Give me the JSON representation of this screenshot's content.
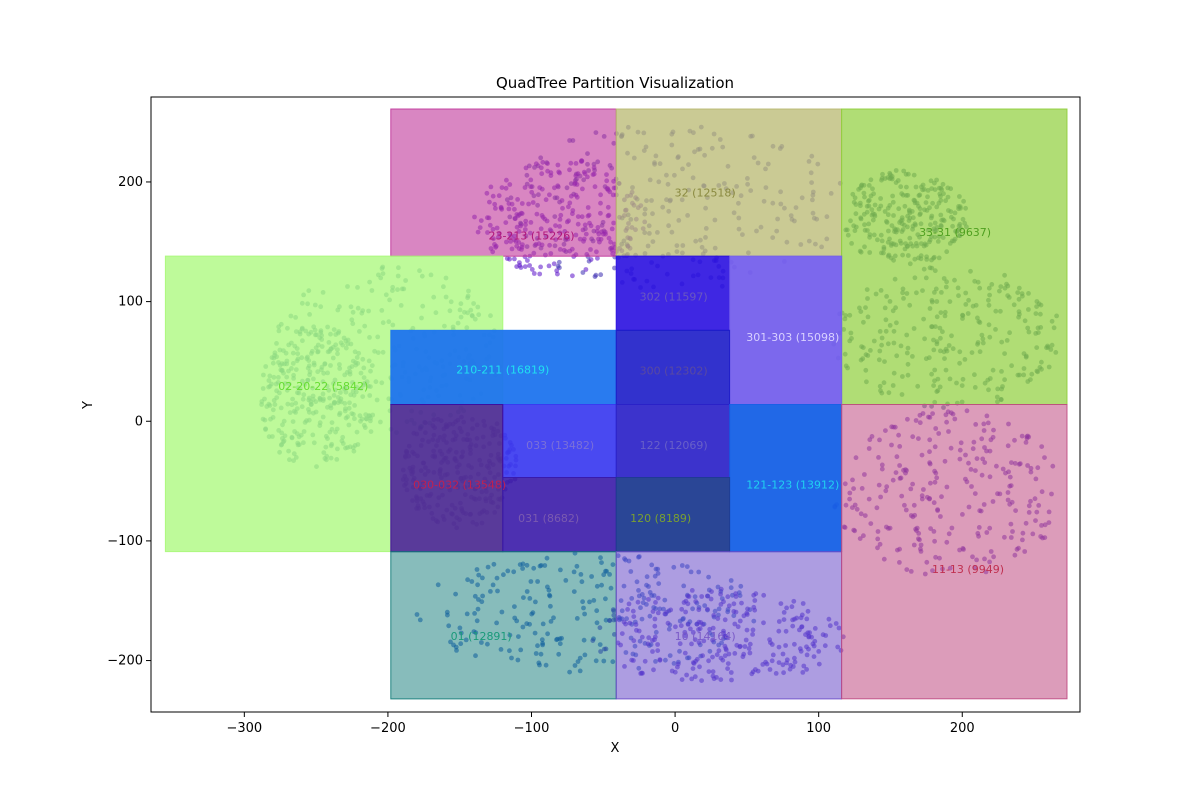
{
  "chart_data": {
    "type": "scatter",
    "title": "QuadTree Partition Visualization",
    "xlabel": "X",
    "ylabel": "Y",
    "xlim": [
      -365,
      282
    ],
    "ylim": [
      -243,
      271
    ],
    "xticks": [
      -300,
      -200,
      -100,
      0,
      100,
      200
    ],
    "yticks": [
      -200,
      -100,
      0,
      100,
      200
    ],
    "grid": false,
    "regions": [
      {
        "label": "23-213 (15226)",
        "x0": -198,
        "x1": -41,
        "y0": 138,
        "y1": 261,
        "color": "#c0359a",
        "alpha": 0.6,
        "text_color": "#b0157a",
        "label_x": -100,
        "label_y": 152
      },
      {
        "label": "32 (12518)",
        "x0": -41,
        "x1": 116,
        "y0": 138,
        "y1": 261,
        "color": "#b8b870",
        "alpha": 0.75,
        "text_color": "#8a8a40",
        "label_x": 21,
        "label_y": 188
      },
      {
        "label": "33-31 (9637)",
        "x0": 116,
        "x1": 273,
        "y0": 14,
        "y1": 261,
        "color": "#8fce3a",
        "alpha": 0.7,
        "text_color": "#4fa020",
        "label_x": 195,
        "label_y": 155
      },
      {
        "label": "02-20-22 (5842)",
        "x0": -355,
        "x1": -120,
        "y0": -109,
        "y1": 138,
        "color": "#a8f878",
        "alpha": 0.75,
        "text_color": "#66dd33",
        "label_x": -245,
        "label_y": 26
      },
      {
        "label": "302 (11597)",
        "x0": -41,
        "x1": 38,
        "y0": 76,
        "y1": 138,
        "color": "#2a10e0",
        "alpha": 0.9,
        "text_color": "#6a58c0",
        "label_x": -1,
        "label_y": 101
      },
      {
        "label": "301-303 (15098)",
        "x0": 38,
        "x1": 116,
        "y0": 14,
        "y1": 138,
        "color": "#7560ec",
        "alpha": 0.95,
        "text_color": "#d8d0ff",
        "label_x": 82,
        "label_y": 67
      },
      {
        "label": "210-211 (16819)",
        "x0": -198,
        "x1": -41,
        "y0": 14,
        "y1": 76,
        "color": "#1d74ee",
        "alpha": 0.95,
        "text_color": "#20e0f0",
        "label_x": -120,
        "label_y": 40
      },
      {
        "label": "300 (12302)",
        "x0": -41,
        "x1": 38,
        "y0": 14,
        "y1": 76,
        "color": "#1c1cc8",
        "alpha": 0.9,
        "text_color": "#5a4aa0",
        "label_x": -1,
        "label_y": 39
      },
      {
        "label": "033 (13482)",
        "x0": -120,
        "x1": -41,
        "y0": -47,
        "y1": 14,
        "color": "#3a3af0",
        "alpha": 0.92,
        "text_color": "#7a70d8",
        "label_x": -80,
        "label_y": -23
      },
      {
        "label": "122 (12069)",
        "x0": -41,
        "x1": 38,
        "y0": -47,
        "y1": 14,
        "color": "#2b22c8",
        "alpha": 0.92,
        "text_color": "#6860c8",
        "label_x": -1,
        "label_y": -23
      },
      {
        "label": "121-123 (13912)",
        "x0": 38,
        "x1": 116,
        "y0": -109,
        "y1": 14,
        "color": "#1560e6",
        "alpha": 0.95,
        "text_color": "#20d0f0",
        "label_x": 82,
        "label_y": -56
      },
      {
        "label": "030-032 (13548)",
        "x0": -198,
        "x1": -120,
        "y0": -109,
        "y1": 14,
        "color": "#400a9a",
        "alpha": 0.8,
        "text_color": "#c02050",
        "label_x": -150,
        "label_y": -56
      },
      {
        "label": "031 (8682)",
        "x0": -120,
        "x1": -41,
        "y0": -109,
        "y1": -47,
        "color": "#3a1aa8",
        "alpha": 0.9,
        "text_color": "#7a5ab0",
        "label_x": -88,
        "label_y": -84
      },
      {
        "label": "120 (8189)",
        "x0": -41,
        "x1": 38,
        "y0": -109,
        "y1": -47,
        "color": "#1f3c90",
        "alpha": 0.95,
        "text_color": "#7aa030",
        "label_x": -10,
        "label_y": -84
      },
      {
        "label": "01 (12891)",
        "x0": -198,
        "x1": -41,
        "y0": -232,
        "y1": -109,
        "color": "#0f7a78",
        "alpha": 0.5,
        "text_color": "#1a9a7a",
        "label_x": -135,
        "label_y": -183
      },
      {
        "label": "10 (14164)",
        "x0": -41,
        "x1": 116,
        "y0": -232,
        "y1": -109,
        "color": "#6a4cc8",
        "alpha": 0.55,
        "text_color": "#7a5ac8",
        "label_x": 21,
        "label_y": -183
      },
      {
        "label": "11-13 (9949)",
        "x0": 116,
        "x1": 273,
        "y0": -232,
        "y1": 14,
        "color": "#bf4a82",
        "alpha": 0.55,
        "text_color": "#c03050",
        "label_x": 204,
        "label_y": -127
      }
    ]
  }
}
